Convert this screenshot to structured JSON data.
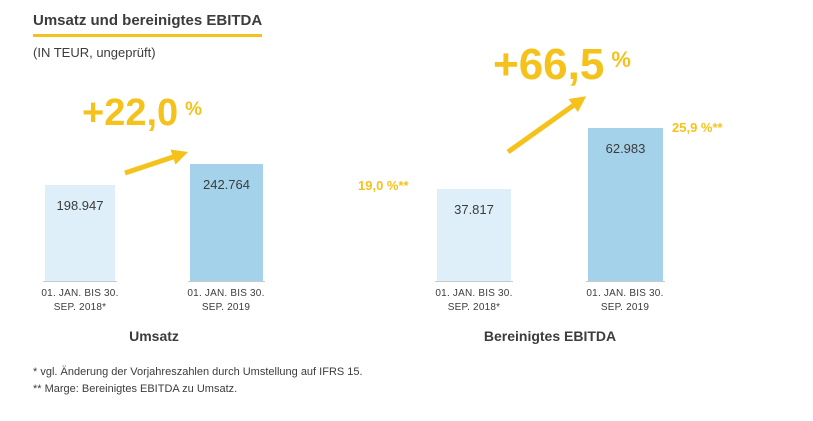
{
  "header": {
    "title": "Umsatz und bereinigtes EBITDA",
    "subtitle": "(IN TEUR, ungeprüft)"
  },
  "colors": {
    "accent_yellow": "#F5C21B",
    "bar_2018": "#DEEFF9",
    "bar_2019": "#A5D2EB",
    "text": "#3C3C3B"
  },
  "chart_data": [
    {
      "type": "bar",
      "title": "Umsatz",
      "unit": "TEUR",
      "categories": [
        "01. JAN. BIS 30. SEP. 2018*",
        "01. JAN. BIS 30. SEP. 2019"
      ],
      "values": [
        198947,
        242764
      ],
      "value_labels": [
        "198.947",
        "242.764"
      ],
      "growth": {
        "value": "+22,0",
        "unit": "%"
      },
      "ylim": [
        0,
        250000
      ],
      "grid": false,
      "legend": false
    },
    {
      "type": "bar",
      "title": "Bereinigtes EBITDA",
      "unit": "TEUR",
      "categories": [
        "01. JAN. BIS 30. SEP. 2018*",
        "01. JAN. BIS 30. SEP. 2019"
      ],
      "values": [
        37817,
        62983
      ],
      "value_labels": [
        "37.817",
        "62.983"
      ],
      "margin_labels": [
        "19,0 %**",
        "25,9 %**"
      ],
      "growth": {
        "value": "+66,5",
        "unit": "%"
      },
      "ylim": [
        0,
        65000
      ],
      "grid": false,
      "legend": false
    }
  ],
  "footnotes": [
    "* vgl. Änderung der Vorjahreszahlen durch Umstellung auf IFRS 15.",
    "** Marge: Bereinigtes EBITDA zu Umsatz."
  ]
}
